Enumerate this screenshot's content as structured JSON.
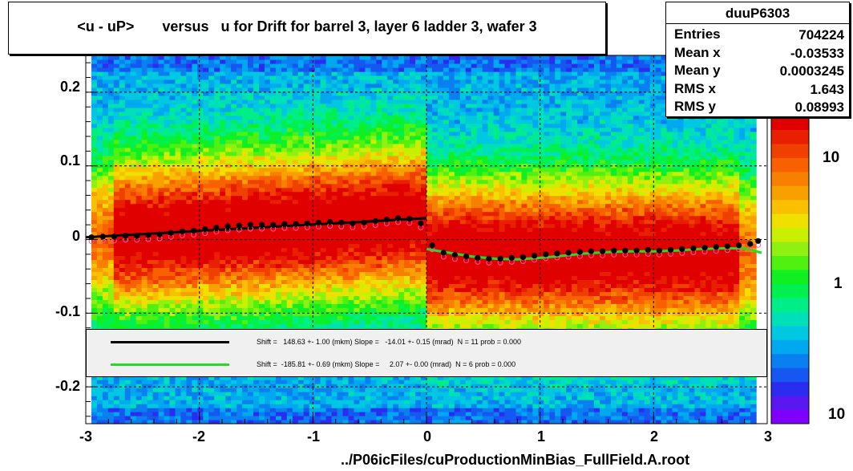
{
  "title": "<u - uP>       versus   u for Drift for barrel 3, layer 6 ladder 3, wafer 3",
  "stats": {
    "name": "duuP6303",
    "rows": [
      {
        "k": "Entries",
        "v": "704224"
      },
      {
        "k": "Mean x",
        "v": "-0.03533"
      },
      {
        "k": "Mean y",
        "v": "0.0003245"
      },
      {
        "k": "RMS x",
        "v": "1.643"
      },
      {
        "k": "RMS y",
        "v": "0.08993"
      }
    ]
  },
  "legend": {
    "entries": [
      {
        "color": "#000000",
        "text": "Shift =   148.63 +- 1.00 (mkm) Slope =   -14.01 +- 0.15 (mrad)  N = 11 prob = 0.000"
      },
      {
        "color": "#22dd22",
        "text": "Shift =  -185.81 +- 0.69 (mkm) Slope =     2.07 +- 0.00 (mrad)  N = 6 prob = 0.000"
      }
    ]
  },
  "xlabel": "../P06icFiles/cuProductionMinBias_FullField.A.root",
  "z_tick_labels": [
    "10",
    "1",
    "10"
  ],
  "chart_data": {
    "type": "heatmap",
    "title": "<u - uP>       versus   u for Drift for barrel 3, layer 6 ladder 3, wafer 3",
    "xlim": [
      -3,
      3
    ],
    "ylim": [
      -0.25,
      0.25
    ],
    "x_ticks": [
      -3,
      -2,
      -1,
      0,
      1,
      2,
      3
    ],
    "x_tick_labels": [
      "-3",
      "-2",
      "-1",
      "0",
      "1",
      "2",
      "3"
    ],
    "y_ticks": [
      -0.2,
      -0.1,
      0,
      0.1,
      0.2
    ],
    "y_tick_labels": [
      "-0.2",
      "-0.1",
      "0",
      "0.1",
      "0.2"
    ],
    "z_scale": "log",
    "grid": true,
    "profile_points": {
      "x": [
        -2.95,
        -2.85,
        -2.75,
        -2.65,
        -2.55,
        -2.45,
        -2.35,
        -2.25,
        -2.15,
        -2.05,
        -1.95,
        -1.85,
        -1.75,
        -1.65,
        -1.55,
        -1.45,
        -1.35,
        -1.25,
        -1.15,
        -1.05,
        -0.95,
        -0.85,
        -0.75,
        -0.65,
        -0.55,
        -0.45,
        -0.35,
        -0.25,
        -0.15,
        -0.05,
        0.05,
        0.15,
        0.25,
        0.35,
        0.45,
        0.55,
        0.65,
        0.75,
        0.85,
        0.95,
        1.05,
        1.15,
        1.25,
        1.35,
        1.45,
        1.55,
        1.65,
        1.75,
        1.85,
        1.95,
        2.05,
        2.15,
        2.25,
        2.35,
        2.45,
        2.55,
        2.65,
        2.75,
        2.85,
        2.92
      ],
      "y": [
        0.003,
        0.004,
        0.004,
        0.005,
        0.005,
        0.006,
        0.007,
        0.009,
        0.011,
        0.012,
        0.014,
        0.016,
        0.018,
        0.019,
        0.02,
        0.02,
        0.02,
        0.021,
        0.021,
        0.022,
        0.023,
        0.024,
        0.023,
        0.022,
        0.023,
        0.025,
        0.027,
        0.029,
        0.028,
        0.022,
        -0.008,
        -0.018,
        -0.021,
        -0.023,
        -0.025,
        -0.026,
        -0.026,
        -0.025,
        -0.024,
        -0.022,
        -0.02,
        -0.019,
        -0.018,
        -0.017,
        -0.016,
        -0.016,
        -0.015,
        -0.015,
        -0.015,
        -0.014,
        -0.015,
        -0.014,
        -0.013,
        -0.012,
        -0.011,
        -0.01,
        -0.009,
        -0.008,
        -0.006,
        -0.002
      ]
    },
    "fit_lines": [
      {
        "color": "#000000",
        "x": [
          -3,
          0
        ],
        "y": [
          0.003,
          0.029
        ]
      },
      {
        "color": "#22dd22",
        "x": [
          0.0,
          0.2,
          0.4,
          0.6,
          0.8,
          1.0,
          1.2,
          1.4,
          1.6,
          1.8,
          2.0,
          2.2,
          2.4,
          2.6,
          2.8,
          2.95
        ],
        "y": [
          -0.013,
          -0.018,
          -0.023,
          -0.026,
          -0.027,
          -0.025,
          -0.022,
          -0.019,
          -0.017,
          -0.016,
          -0.016,
          -0.015,
          -0.013,
          -0.012,
          -0.012,
          -0.018
        ]
      }
    ]
  }
}
